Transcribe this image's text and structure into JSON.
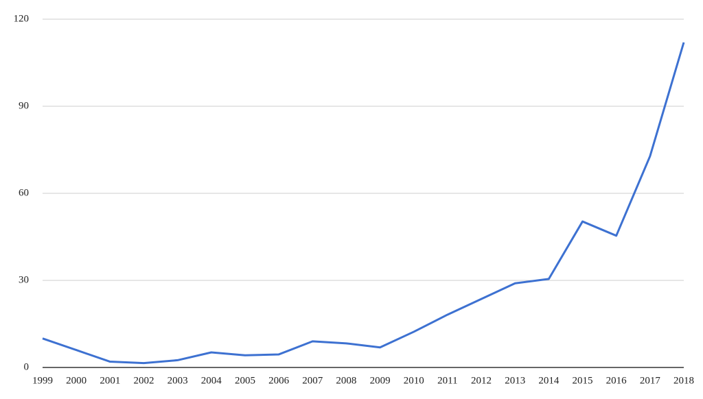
{
  "chart_data": {
    "type": "line",
    "categories": [
      "1999",
      "2000",
      "2001",
      "2002",
      "2003",
      "2004",
      "2005",
      "2006",
      "2007",
      "2008",
      "2009",
      "2010",
      "2011",
      "2012",
      "2013",
      "2014",
      "2015",
      "2016",
      "2017",
      "2018"
    ],
    "series": [
      {
        "color": "#3d71d1",
        "values": [
          10,
          6,
          2,
          1.5,
          2.5,
          5.2,
          4.2,
          4.5,
          9,
          8.3,
          6.9,
          12.3,
          18.2,
          23.6,
          29,
          30.5,
          50.3,
          45.4,
          72.8,
          112
        ]
      }
    ],
    "ylim": [
      0,
      120
    ],
    "yticks": [
      0,
      30,
      60,
      90,
      120
    ],
    "grid": true
  }
}
